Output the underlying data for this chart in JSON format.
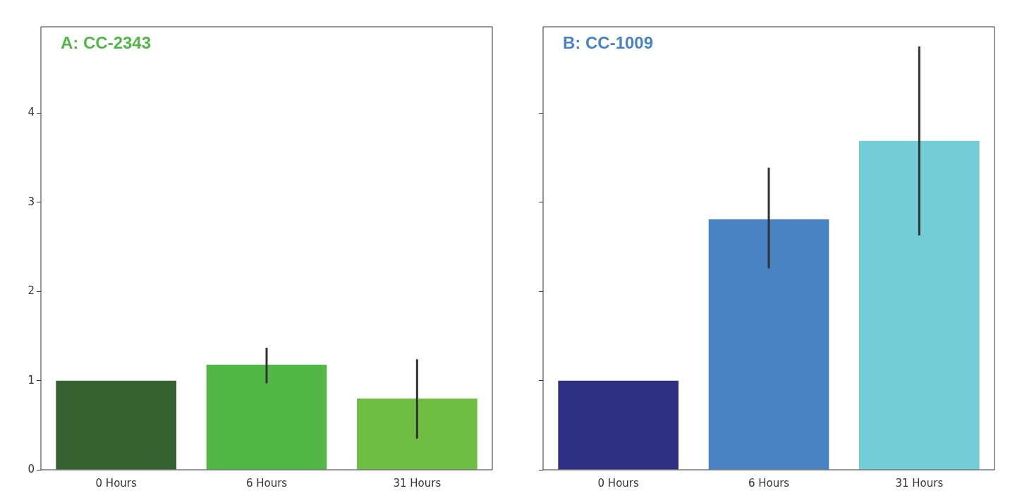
{
  "chart_data": [
    {
      "type": "bar",
      "title": "A: CC-2343",
      "categories": [
        "0 Hours",
        "6 Hours",
        "31 Hours"
      ],
      "values": [
        1.0,
        1.18,
        0.8
      ],
      "colors": [
        "#376333",
        "#52b747",
        "#6fbe43"
      ],
      "errors": [
        null,
        [
          0.97,
          1.37
        ],
        [
          0.35,
          1.24
        ]
      ],
      "ylim": [
        0,
        4.97
      ],
      "yticks": [
        0,
        1,
        2,
        3,
        4
      ]
    },
    {
      "type": "bar",
      "title": "B: CC-1009",
      "categories": [
        "0 Hours",
        "6 Hours",
        "31 Hours"
      ],
      "values": [
        1.0,
        2.81,
        3.69
      ],
      "colors": [
        "#2e2f80",
        "#4a83c3",
        "#72cdd7"
      ],
      "errors": [
        null,
        [
          2.26,
          3.39
        ],
        [
          2.63,
          4.75
        ]
      ],
      "ylim": [
        0,
        4.97
      ],
      "yticks": [
        0,
        1,
        2,
        3,
        4
      ],
      "tick_labels": "x"
    }
  ]
}
